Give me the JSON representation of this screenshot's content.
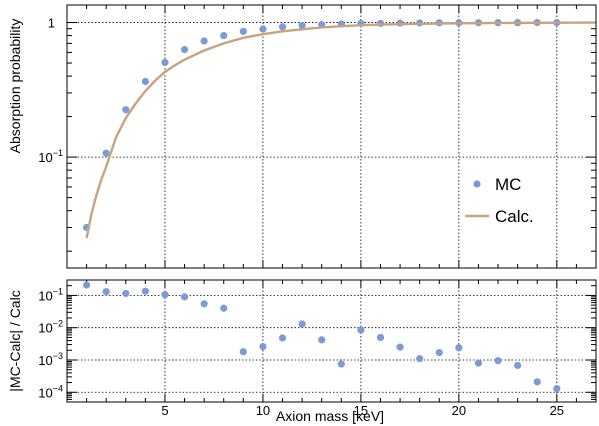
{
  "chart_data": [
    {
      "type": "scatter",
      "panel": "upper",
      "ylabel": "Absorption probability",
      "xlim": [
        0,
        27
      ],
      "ylim": [
        0.015,
        1.35
      ],
      "yscale": "log",
      "grid": true,
      "y_ticks": [
        {
          "value": 0.1,
          "base": "10",
          "exp": "−1",
          "text": ""
        },
        {
          "value": 1,
          "base": "",
          "exp": "",
          "text": "1"
        }
      ],
      "legend": {
        "placement": "center-right",
        "entries": [
          {
            "label": "MC",
            "marker": "dot",
            "color": "#7a9cd6"
          },
          {
            "label": "Calc.",
            "marker": "line",
            "color": "#c9a27e"
          }
        ]
      },
      "series": [
        {
          "name": "MC",
          "kind": "points",
          "color": "#7a9cd6",
          "x": [
            1,
            2,
            3,
            4,
            5,
            6,
            7,
            8,
            9,
            10,
            11,
            12,
            13,
            14,
            15,
            16,
            17,
            18,
            19,
            20,
            21,
            22,
            23,
            24,
            25
          ],
          "y": [
            0.03,
            0.107,
            0.225,
            0.365,
            0.505,
            0.63,
            0.73,
            0.8,
            0.86,
            0.895,
            0.93,
            0.95,
            0.965,
            0.975,
            0.982,
            0.987,
            0.99,
            0.993,
            0.995,
            0.996,
            0.997,
            0.998,
            0.998,
            0.999,
            0.999
          ]
        },
        {
          "name": "Calc.",
          "kind": "line",
          "color": "#c9a27e",
          "x": [
            1,
            1.25,
            1.5,
            1.75,
            2,
            2.5,
            3,
            3.5,
            4,
            4.5,
            5,
            5.5,
            6,
            7,
            8,
            9,
            10,
            11,
            12,
            13,
            14,
            15,
            16,
            18,
            20,
            22,
            24,
            27
          ],
          "y": [
            0.025,
            0.038,
            0.052,
            0.068,
            0.085,
            0.14,
            0.195,
            0.25,
            0.31,
            0.37,
            0.43,
            0.48,
            0.53,
            0.62,
            0.7,
            0.77,
            0.82,
            0.86,
            0.89,
            0.92,
            0.94,
            0.955,
            0.965,
            0.978,
            0.987,
            0.993,
            0.996,
            0.999
          ]
        }
      ]
    },
    {
      "type": "scatter",
      "panel": "lower",
      "xlabel": "Axion mass [keV]",
      "ylabel": "|MC-Calc| / Calc",
      "xlim": [
        0,
        27
      ],
      "ylim": [
        5e-05,
        0.3
      ],
      "yscale": "log",
      "grid": true,
      "x_ticks": [
        5,
        10,
        15,
        20,
        25
      ],
      "y_ticks": [
        {
          "value": 0.0001,
          "base": "10",
          "exp": "−4"
        },
        {
          "value": 0.001,
          "base": "10",
          "exp": "−3"
        },
        {
          "value": 0.01,
          "base": "10",
          "exp": "−2"
        },
        {
          "value": 0.1,
          "base": "10",
          "exp": "−1"
        }
      ],
      "series": [
        {
          "name": "",
          "kind": "points",
          "color": "#7a9cd6",
          "x": [
            1,
            2,
            3,
            4,
            5,
            6,
            7,
            8,
            9,
            10,
            11,
            12,
            13,
            14,
            15,
            16,
            17,
            18,
            19,
            20,
            21,
            22,
            23,
            24,
            25
          ],
          "y": [
            0.21,
            0.13,
            0.115,
            0.135,
            0.105,
            0.09,
            0.055,
            0.04,
            0.0018,
            0.0026,
            0.0048,
            0.013,
            0.0042,
            0.00075,
            0.0085,
            0.005,
            0.0025,
            0.0011,
            0.0017,
            0.0024,
            0.0008,
            0.00095,
            0.00068,
            0.00021,
            0.00013
          ]
        }
      ]
    }
  ]
}
